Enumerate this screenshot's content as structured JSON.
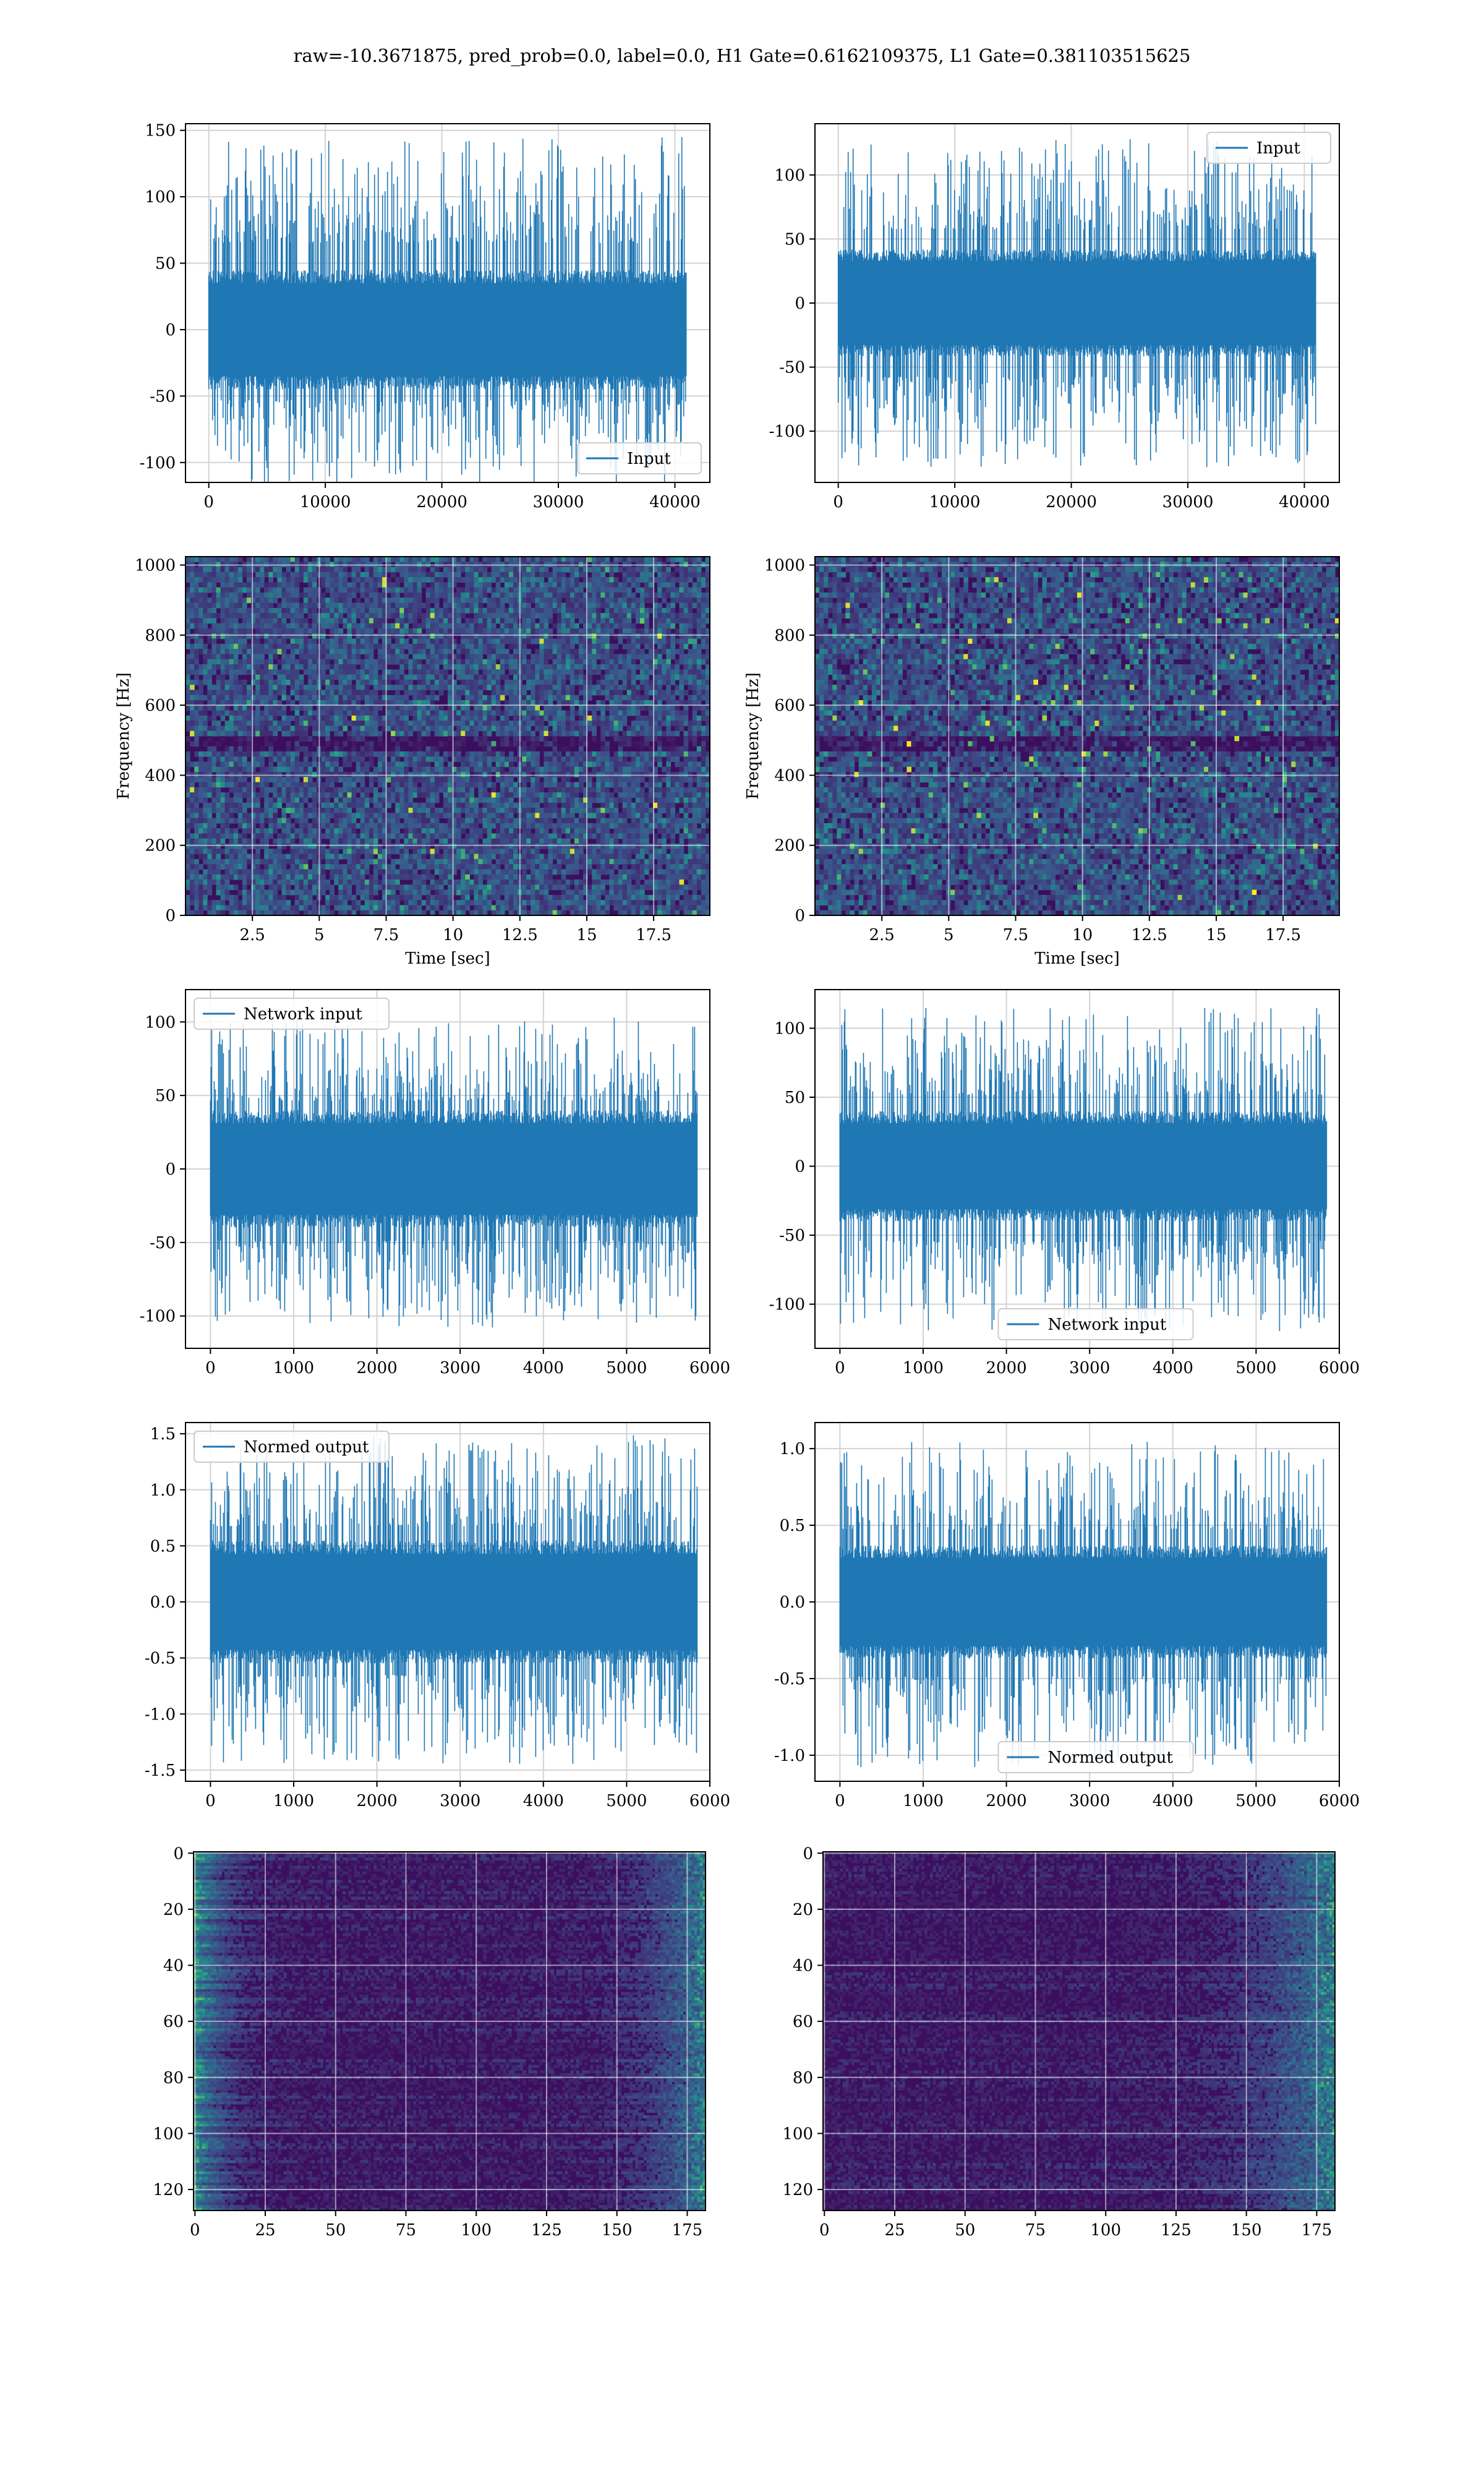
{
  "figure": {
    "title": "raw=-10.3671875, pred_prob=0.0, label=0.0, H1 Gate=0.6162109375, L1 Gate=0.381103515625"
  },
  "colors": {
    "line": "#1f77b4",
    "grid": "#d3d3d3",
    "viridis_low": "#440154",
    "viridis_mid": "#21918c",
    "viridis_high": "#fde725"
  },
  "chart_data": [
    {
      "id": "raw-h1",
      "type": "line",
      "xlim": [
        -2000,
        43000
      ],
      "ylim": [
        -115,
        155
      ],
      "xticks": [
        0,
        10000,
        20000,
        30000,
        40000
      ],
      "yticks": [
        -100,
        -50,
        0,
        50,
        100,
        150
      ],
      "series": [
        {
          "name": "Input",
          "x_range": [
            0,
            40960
          ],
          "band": [
            -45,
            45
          ],
          "spike_max": 145,
          "spike_min": -118
        }
      ],
      "legend": "lower right",
      "grid": true,
      "xlabel": "",
      "ylabel": ""
    },
    {
      "id": "raw-l1",
      "type": "line",
      "xlim": [
        -2000,
        43000
      ],
      "ylim": [
        -140,
        140
      ],
      "xticks": [
        0,
        10000,
        20000,
        30000,
        40000
      ],
      "yticks": [
        -100,
        -50,
        0,
        50,
        100
      ],
      "series": [
        {
          "name": "Input",
          "x_range": [
            0,
            40960
          ],
          "band": [
            -42,
            42
          ],
          "spike_max": 128,
          "spike_min": -128
        }
      ],
      "legend": "upper right",
      "grid": true,
      "xlabel": "",
      "ylabel": ""
    },
    {
      "id": "spec-h1",
      "type": "heatmap",
      "xlim": [
        0,
        19.6
      ],
      "ylim": [
        0,
        1024
      ],
      "xticks": [
        2.5,
        5.0,
        7.5,
        10.0,
        12.5,
        15.0,
        17.5
      ],
      "yticks": [
        0,
        200,
        400,
        600,
        800,
        1000
      ],
      "xlabel": "Time [sec]",
      "ylabel": "Frequency [Hz]",
      "grid": true
    },
    {
      "id": "spec-l1",
      "type": "heatmap",
      "xlim": [
        0,
        19.6
      ],
      "ylim": [
        0,
        1024
      ],
      "xticks": [
        2.5,
        5.0,
        7.5,
        10.0,
        12.5,
        15.0,
        17.5
      ],
      "yticks": [
        0,
        200,
        400,
        600,
        800,
        1000
      ],
      "xlabel": "Time [sec]",
      "ylabel": "Frequency [Hz]",
      "grid": true
    },
    {
      "id": "net-h1",
      "type": "line",
      "xlim": [
        -300,
        6000
      ],
      "ylim": [
        -122,
        122
      ],
      "xticks": [
        0,
        1000,
        2000,
        3000,
        4000,
        5000,
        6000
      ],
      "yticks": [
        -100,
        -50,
        0,
        50,
        100
      ],
      "series": [
        {
          "name": "Network input",
          "x_range": [
            0,
            5850
          ],
          "band": [
            -40,
            40
          ],
          "spike_max": 103,
          "spike_min": -108
        }
      ],
      "legend": "upper left",
      "grid": true,
      "xlabel": "",
      "ylabel": ""
    },
    {
      "id": "net-l1",
      "type": "line",
      "xlim": [
        -300,
        6000
      ],
      "ylim": [
        -132,
        128
      ],
      "xticks": [
        0,
        1000,
        2000,
        3000,
        4000,
        5000,
        6000
      ],
      "yticks": [
        -100,
        -50,
        0,
        50,
        100
      ],
      "series": [
        {
          "name": "Network input",
          "x_range": [
            0,
            5850
          ],
          "band": [
            -40,
            40
          ],
          "spike_max": 115,
          "spike_min": -120
        }
      ],
      "legend": "lower center",
      "grid": true,
      "xlabel": "",
      "ylabel": ""
    },
    {
      "id": "norm-h1",
      "type": "line",
      "xlim": [
        -300,
        6000
      ],
      "ylim": [
        -1.6,
        1.6
      ],
      "xticks": [
        0,
        1000,
        2000,
        3000,
        4000,
        5000,
        6000
      ],
      "yticks": [
        -1.5,
        -1.0,
        -0.5,
        0.0,
        0.5,
        1.0,
        1.5
      ],
      "series": [
        {
          "name": "Normed output",
          "x_range": [
            0,
            5850
          ],
          "band": [
            -0.55,
            0.55
          ],
          "spike_max": 1.5,
          "spike_min": -1.45
        }
      ],
      "legend": "upper left",
      "grid": true,
      "xlabel": "",
      "ylabel": ""
    },
    {
      "id": "norm-l1",
      "type": "line",
      "xlim": [
        -300,
        6000
      ],
      "ylim": [
        -1.17,
        1.17
      ],
      "xticks": [
        0,
        1000,
        2000,
        3000,
        4000,
        5000,
        6000
      ],
      "yticks": [
        -1.0,
        -0.5,
        0.0,
        0.5,
        1.0
      ],
      "series": [
        {
          "name": "Normed output",
          "x_range": [
            0,
            5850
          ],
          "band": [
            -0.37,
            0.37
          ],
          "spike_max": 1.05,
          "spike_min": -1.08
        }
      ],
      "legend": "lower center",
      "grid": true,
      "xlabel": "",
      "ylabel": ""
    },
    {
      "id": "feat-h1",
      "type": "heatmap",
      "xlim": [
        -0.5,
        181.5
      ],
      "ylim": [
        127.5,
        -0.5
      ],
      "xticks": [
        0,
        25,
        50,
        75,
        100,
        125,
        150,
        175
      ],
      "yticks": [
        0,
        20,
        40,
        60,
        80,
        100,
        120
      ],
      "bright_side": "both",
      "grid": true,
      "xlabel": "",
      "ylabel": ""
    },
    {
      "id": "feat-l1",
      "type": "heatmap",
      "xlim": [
        -0.5,
        181.5
      ],
      "ylim": [
        127.5,
        -0.5
      ],
      "xticks": [
        0,
        25,
        50,
        75,
        100,
        125,
        150,
        175
      ],
      "yticks": [
        0,
        20,
        40,
        60,
        80,
        100,
        120
      ],
      "bright_side": "right",
      "grid": true,
      "xlabel": "",
      "ylabel": ""
    }
  ]
}
